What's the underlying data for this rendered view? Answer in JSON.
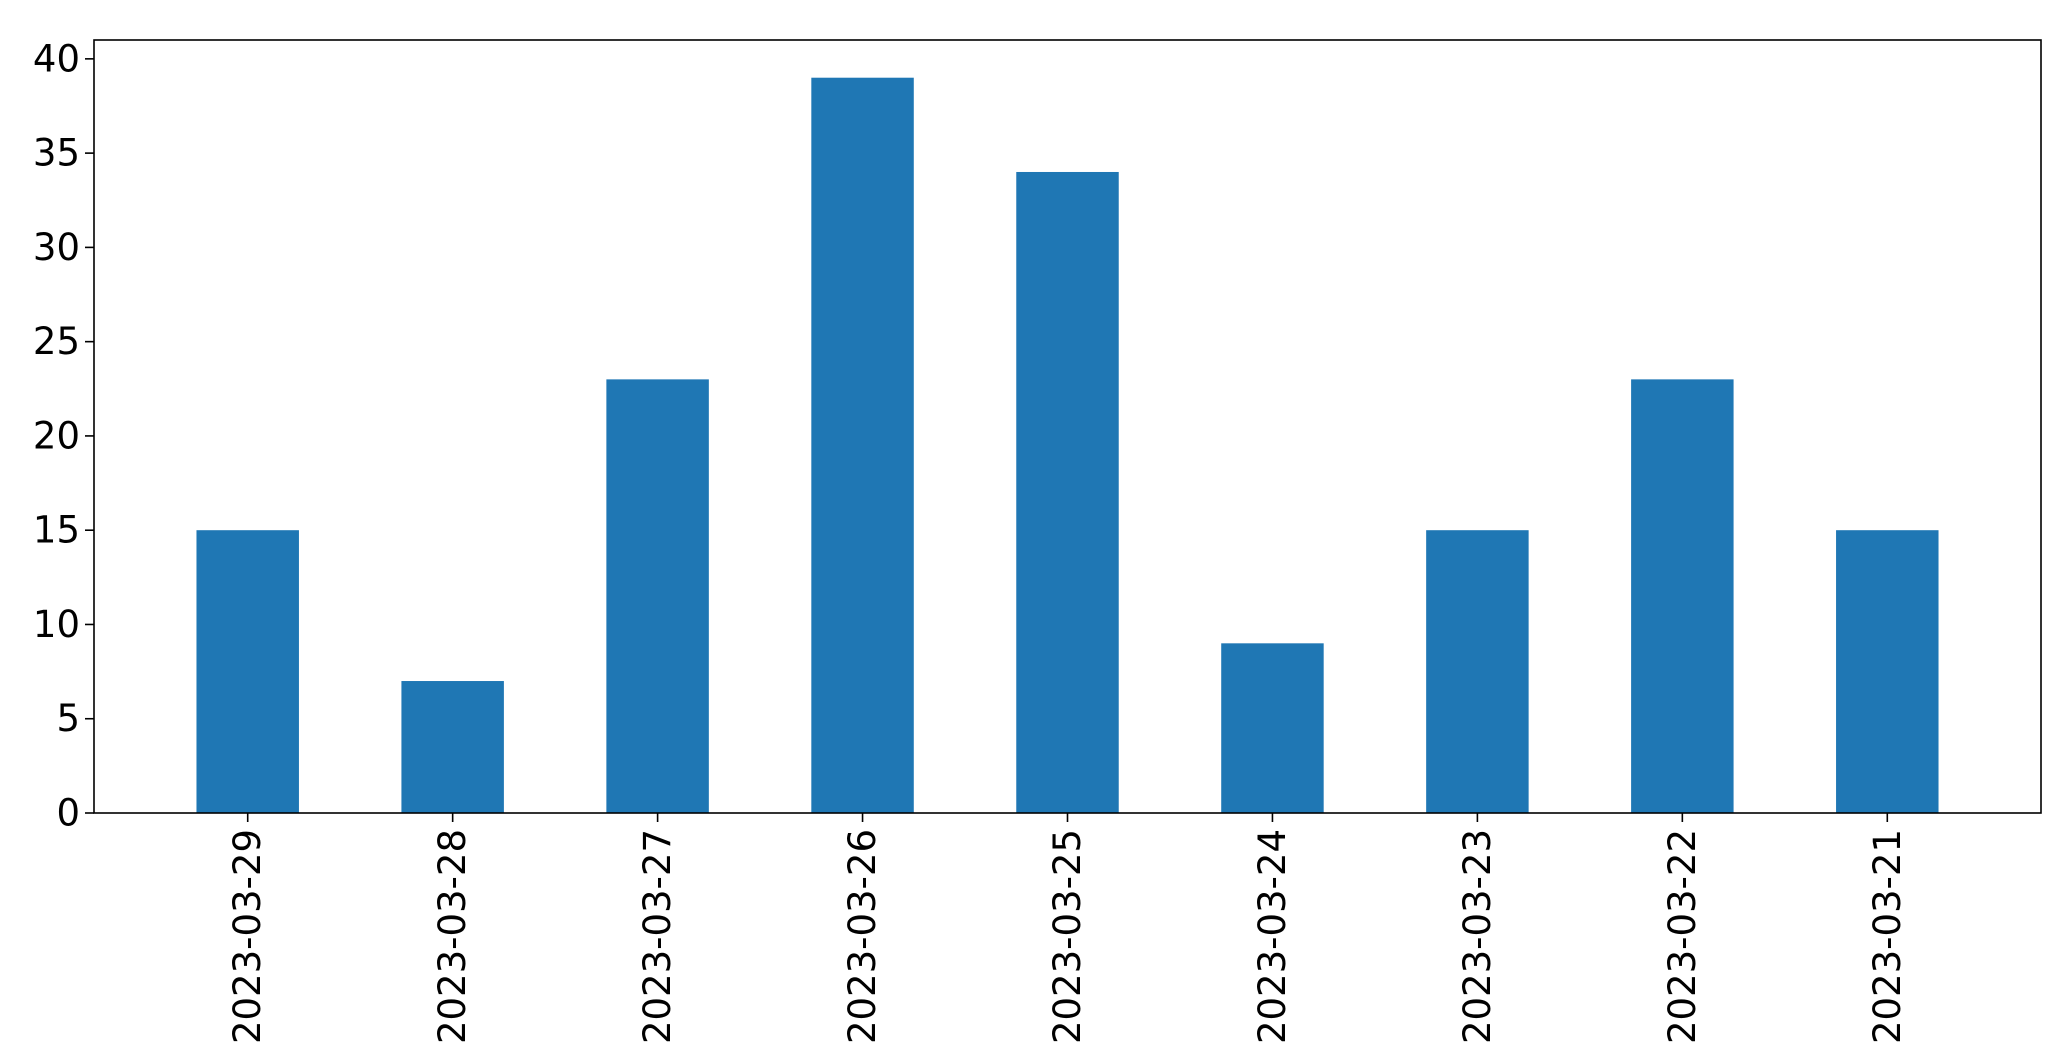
{
  "chart_data": {
    "type": "bar",
    "title": "",
    "xlabel": "",
    "ylabel": "",
    "categories": [
      "2023-03-29",
      "2023-03-28",
      "2023-03-27",
      "2023-03-26",
      "2023-03-25",
      "2023-03-24",
      "2023-03-23",
      "2023-03-22",
      "2023-03-21"
    ],
    "values": [
      15,
      7,
      23,
      39,
      34,
      9,
      15,
      23,
      15
    ],
    "ylim": [
      0,
      41
    ],
    "yticks": [
      0,
      5,
      10,
      15,
      20,
      25,
      30,
      35,
      40
    ],
    "x_tick_rotation": "vertical",
    "grid": false,
    "legend": "none",
    "bar_color": "#1f77b4"
  }
}
